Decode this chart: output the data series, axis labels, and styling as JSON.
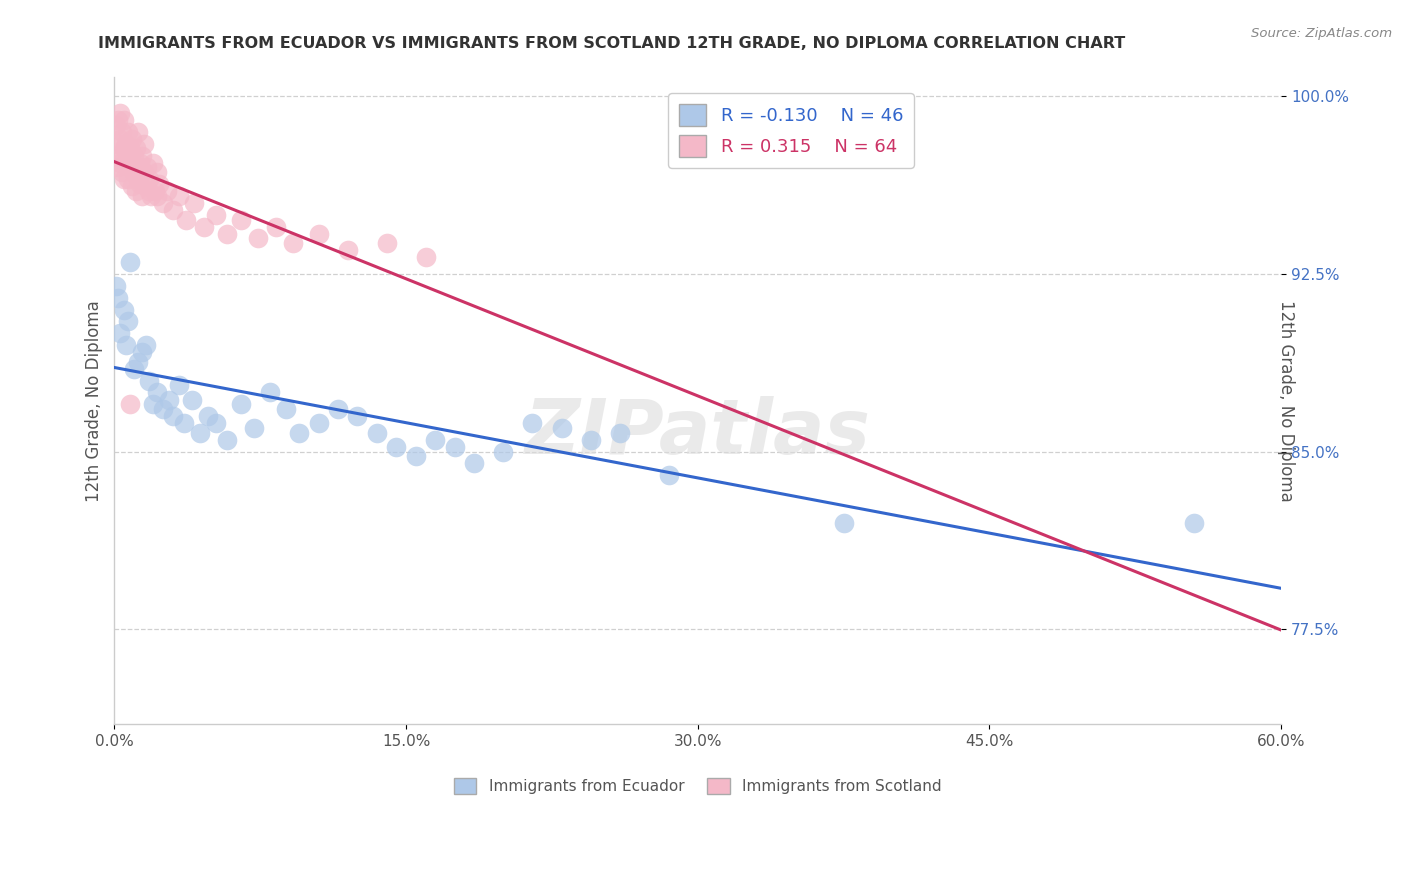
{
  "title": "IMMIGRANTS FROM ECUADOR VS IMMIGRANTS FROM SCOTLAND 12TH GRADE, NO DIPLOMA CORRELATION CHART",
  "source": "Source: ZipAtlas.com",
  "xlabel_blue": "Immigrants from Ecuador",
  "xlabel_pink": "Immigrants from Scotland",
  "ylabel": "12th Grade, No Diploma",
  "xlim": [
    0.0,
    0.6
  ],
  "ylim": [
    0.735,
    1.008
  ],
  "yticks": [
    0.775,
    0.85,
    0.925,
    1.0
  ],
  "ytick_labels": [
    "77.5%",
    "85.0%",
    "92.5%",
    "100.0%"
  ],
  "xticks": [
    0.0,
    0.15,
    0.3,
    0.45,
    0.6
  ],
  "xtick_labels": [
    "0.0%",
    "15.0%",
    "30.0%",
    "45.0%",
    "60.0%"
  ],
  "R_blue": -0.13,
  "N_blue": 46,
  "R_pink": 0.315,
  "N_pink": 64,
  "blue_color": "#aec8e8",
  "pink_color": "#f4b8c8",
  "blue_line_color": "#3366cc",
  "pink_line_color": "#cc3366",
  "ecuador_x": [
    0.001,
    0.002,
    0.003,
    0.005,
    0.006,
    0.007,
    0.008,
    0.01,
    0.012,
    0.014,
    0.016,
    0.018,
    0.02,
    0.022,
    0.025,
    0.028,
    0.03,
    0.033,
    0.036,
    0.04,
    0.044,
    0.048,
    0.052,
    0.058,
    0.065,
    0.072,
    0.08,
    0.088,
    0.095,
    0.105,
    0.115,
    0.125,
    0.135,
    0.145,
    0.155,
    0.165,
    0.175,
    0.185,
    0.2,
    0.215,
    0.23,
    0.245,
    0.26,
    0.285,
    0.375,
    0.555
  ],
  "ecuador_y": [
    0.92,
    0.915,
    0.9,
    0.91,
    0.895,
    0.905,
    0.93,
    0.885,
    0.888,
    0.892,
    0.895,
    0.88,
    0.87,
    0.875,
    0.868,
    0.872,
    0.865,
    0.878,
    0.862,
    0.872,
    0.858,
    0.865,
    0.862,
    0.855,
    0.87,
    0.86,
    0.875,
    0.868,
    0.858,
    0.862,
    0.868,
    0.865,
    0.858,
    0.852,
    0.848,
    0.855,
    0.852,
    0.845,
    0.85,
    0.862,
    0.86,
    0.855,
    0.858,
    0.84,
    0.82,
    0.82
  ],
  "scotland_x": [
    0.001,
    0.001,
    0.002,
    0.002,
    0.002,
    0.003,
    0.003,
    0.003,
    0.004,
    0.004,
    0.004,
    0.005,
    0.005,
    0.005,
    0.006,
    0.006,
    0.007,
    0.007,
    0.007,
    0.008,
    0.008,
    0.009,
    0.009,
    0.01,
    0.01,
    0.011,
    0.011,
    0.012,
    0.012,
    0.013,
    0.013,
    0.014,
    0.014,
    0.015,
    0.015,
    0.016,
    0.017,
    0.018,
    0.019,
    0.02,
    0.021,
    0.022,
    0.023,
    0.025,
    0.027,
    0.03,
    0.033,
    0.037,
    0.041,
    0.046,
    0.052,
    0.058,
    0.065,
    0.074,
    0.083,
    0.092,
    0.105,
    0.12,
    0.14,
    0.16,
    0.008,
    0.012,
    0.018,
    0.022
  ],
  "scotland_y": [
    0.975,
    0.988,
    0.98,
    0.97,
    0.99,
    0.972,
    0.982,
    0.993,
    0.975,
    0.985,
    0.968,
    0.978,
    0.99,
    0.965,
    0.98,
    0.972,
    0.985,
    0.975,
    0.965,
    0.978,
    0.97,
    0.982,
    0.962,
    0.975,
    0.968,
    0.978,
    0.96,
    0.97,
    0.985,
    0.972,
    0.963,
    0.975,
    0.958,
    0.968,
    0.98,
    0.962,
    0.97,
    0.965,
    0.958,
    0.972,
    0.96,
    0.968,
    0.963,
    0.955,
    0.96,
    0.952,
    0.958,
    0.948,
    0.955,
    0.945,
    0.95,
    0.942,
    0.948,
    0.94,
    0.945,
    0.938,
    0.942,
    0.935,
    0.938,
    0.932,
    0.87,
    0.965,
    0.96,
    0.958
  ],
  "watermark": "ZIPatlas",
  "bg_color": "#ffffff",
  "grid_color": "#d0d0d0"
}
